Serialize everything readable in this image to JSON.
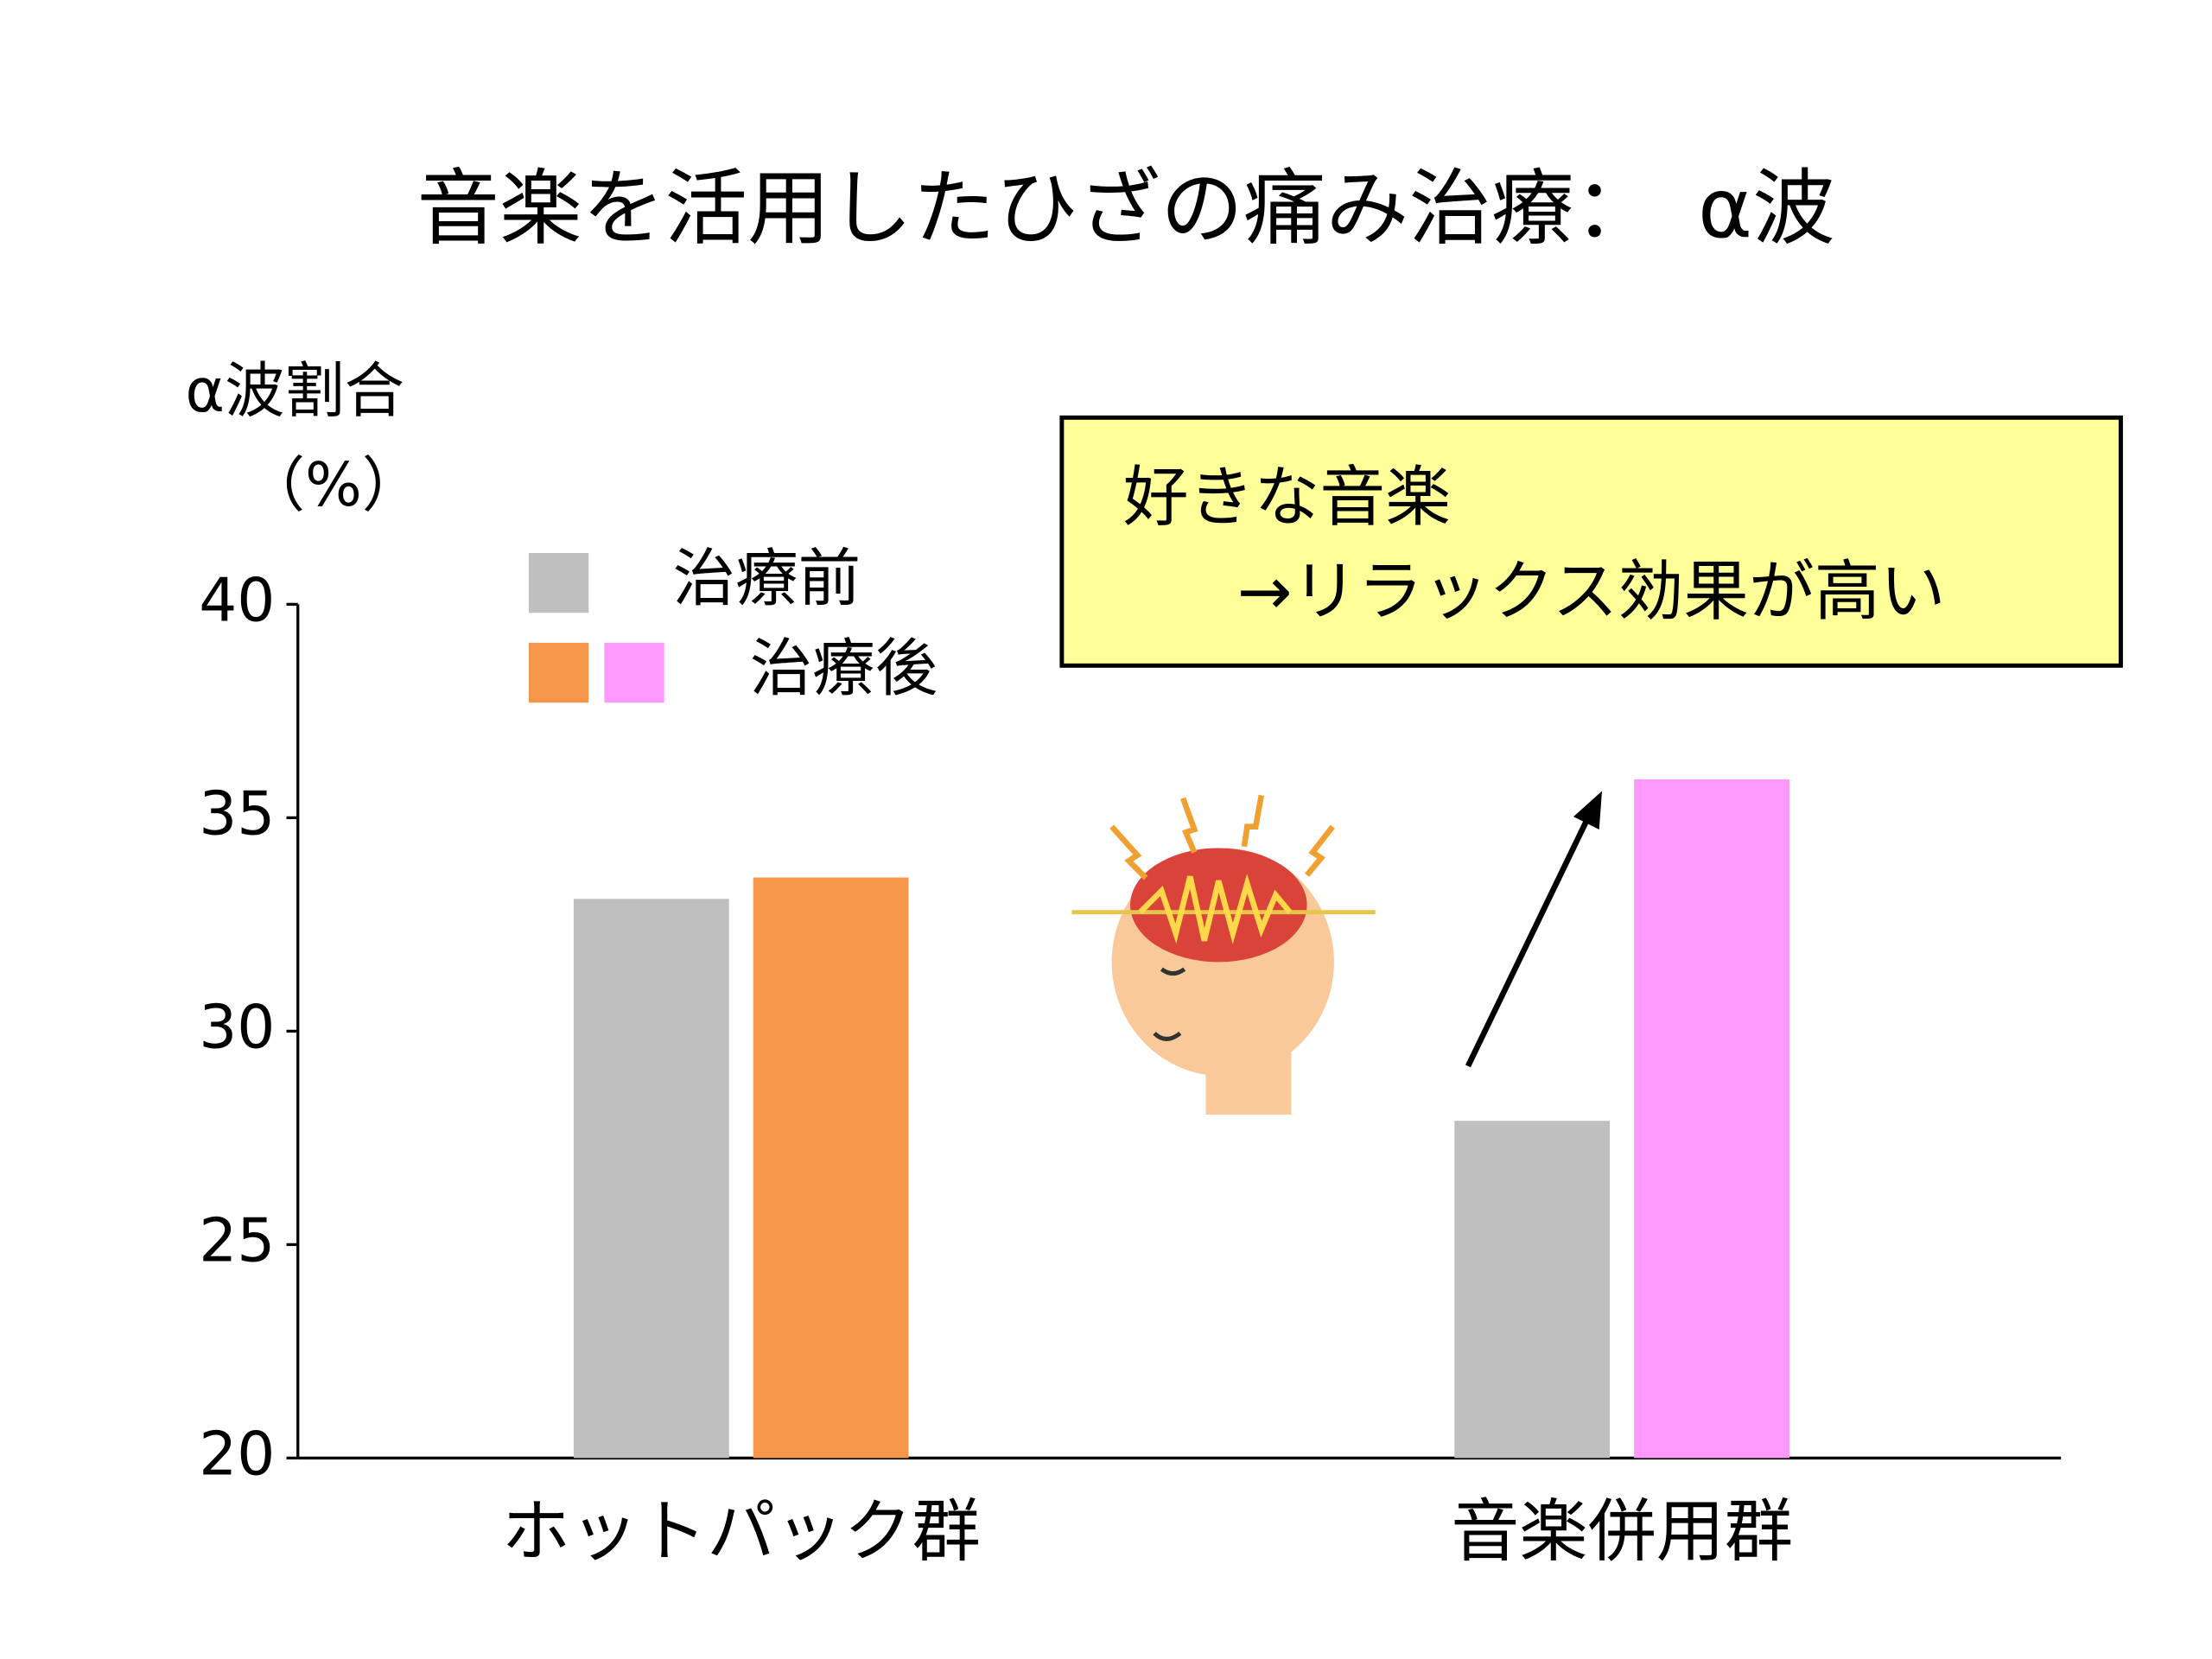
{
  "chart_data": {
    "type": "bar",
    "title": "音楽を活用したひざの痛み治療：　α波",
    "y_label": [
      "α波割合",
      "（%）"
    ],
    "categories": [
      "ホットパック群",
      "音楽併用群"
    ],
    "series": [
      {
        "name": "治療前",
        "color": "#bfbfbf",
        "values": [
          33.1,
          27.9
        ]
      },
      {
        "name": "治療後",
        "colors": [
          "#f5964a",
          "#ff99ff"
        ],
        "values": [
          33.6,
          35.9
        ]
      }
    ],
    "ylim": [
      20,
      40
    ],
    "yticks": [
      20,
      25,
      30,
      35,
      40
    ],
    "annotation": [
      "好きな音楽",
      "→リラックス効果が高い"
    ]
  }
}
